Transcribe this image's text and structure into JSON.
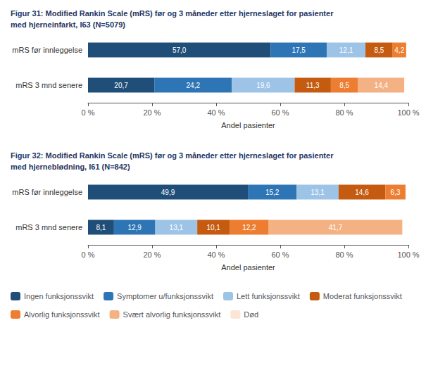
{
  "chart_data": [
    {
      "type": "bar",
      "orientation": "horizontal",
      "stacked": true,
      "data_labels": true,
      "grid": false,
      "title": "Figur 31: Modified Rankin Scale (mRS) før og 3 måneder etter hjerneslaget for pasienter\nmed hjerneinfarkt, I63 (N=5079)",
      "title_color": "#1f3864",
      "x_label": "Andel pasienter",
      "categories": [
        "mRS før innleggelse",
        "mRS 3 mnd senere"
      ],
      "xlim": [
        0,
        100
      ],
      "xticks": [
        {
          "value": 0,
          "label": "0 %"
        },
        {
          "value": 20,
          "label": "20 %"
        },
        {
          "value": 40,
          "label": "40 %"
        },
        {
          "value": 60,
          "label": "60 %"
        },
        {
          "value": 80,
          "label": "80 %"
        },
        {
          "value": 100,
          "label": "100 %"
        }
      ],
      "series": [
        {
          "name": "Ingen funksjonssvikt",
          "color": "#1f4e79",
          "values": [
            57.0,
            20.7
          ],
          "value_labels": [
            "57,0",
            "20,7"
          ]
        },
        {
          "name": "Symptomer u/funksjonssvikt",
          "color": "#2e75b6",
          "values": [
            17.5,
            24.2
          ],
          "value_labels": [
            "17,5",
            "24,2"
          ]
        },
        {
          "name": "Lett funksjonssvikt",
          "color": "#9dc3e6",
          "values": [
            12.1,
            19.6
          ],
          "value_labels": [
            "12,1",
            "19,6"
          ]
        },
        {
          "name": "Moderat funksjonssvikt",
          "color": "#c55a11",
          "values": [
            8.5,
            11.3
          ],
          "value_labels": [
            "8,5",
            "11,3"
          ]
        },
        {
          "name": "Alvorlig funksjonssvikt",
          "color": "#ed7d31",
          "values": [
            4.2,
            8.5
          ],
          "value_labels": [
            "4,2",
            "8,5"
          ]
        },
        {
          "name": "Svært alvorlig funksjonssvikt",
          "color": "#f4b183",
          "values": [
            0.0,
            14.4
          ],
          "value_labels": [
            null,
            "14,4"
          ]
        },
        {
          "name": "Død",
          "color": "#fce4d6",
          "values": [
            0.0,
            0.0
          ],
          "value_labels": [
            null,
            null
          ]
        }
      ]
    },
    {
      "type": "bar",
      "orientation": "horizontal",
      "stacked": true,
      "data_labels": true,
      "grid": false,
      "legend": "bottom",
      "title": "Figur 32: Modified Rankin Scale (mRS) før og 3 måneder etter hjerneslaget for pasienter\nmed hjerneblødning, I61 (N=842)",
      "title_color": "#1f3864",
      "x_label": "Andel pasienter",
      "categories": [
        "mRS før innleggelse",
        "mRS 3 mnd senere"
      ],
      "xlim": [
        0,
        100
      ],
      "xticks": [
        {
          "value": 0,
          "label": "0 %"
        },
        {
          "value": 20,
          "label": "20 %"
        },
        {
          "value": 40,
          "label": "40 %"
        },
        {
          "value": 60,
          "label": "60 %"
        },
        {
          "value": 80,
          "label": "80 %"
        },
        {
          "value": 100,
          "label": "100 %"
        }
      ],
      "series": [
        {
          "name": "Ingen funksjonssvikt",
          "color": "#1f4e79",
          "values": [
            49.9,
            8.1
          ],
          "value_labels": [
            "49,9",
            "8,1"
          ]
        },
        {
          "name": "Symptomer u/funksjonssvikt",
          "color": "#2e75b6",
          "values": [
            15.2,
            12.9
          ],
          "value_labels": [
            "15,2",
            "12,9"
          ]
        },
        {
          "name": "Lett funksjonssvikt",
          "color": "#9dc3e6",
          "values": [
            13.1,
            13.1
          ],
          "value_labels": [
            "13,1",
            "13,1"
          ]
        },
        {
          "name": "Moderat funksjonssvikt",
          "color": "#c55a11",
          "values": [
            14.6,
            10.1
          ],
          "value_labels": [
            "14,6",
            "10,1"
          ]
        },
        {
          "name": "Alvorlig funksjonssvikt",
          "color": "#ed7d31",
          "values": [
            6.3,
            12.2
          ],
          "value_labels": [
            "6,3",
            "12,2"
          ]
        },
        {
          "name": "Svært alvorlig funksjonssvikt",
          "color": "#f4b183",
          "values": [
            0.0,
            41.7
          ],
          "value_labels": [
            null,
            "41,7"
          ]
        },
        {
          "name": "Død",
          "color": "#fce4d6",
          "values": [
            0.0,
            0.0
          ],
          "value_labels": [
            null,
            null
          ]
        }
      ]
    }
  ]
}
